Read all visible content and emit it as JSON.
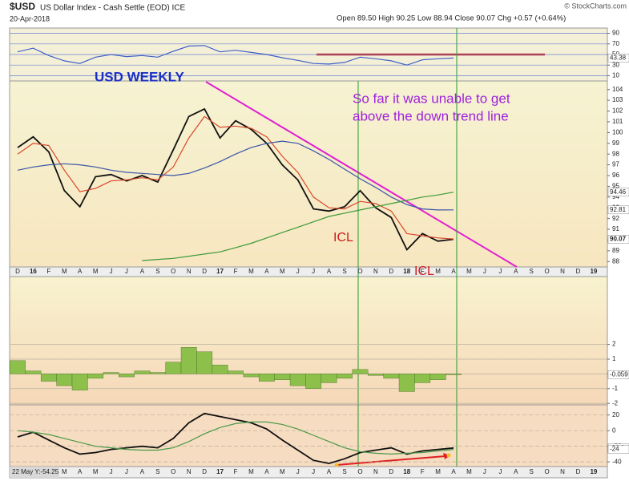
{
  "header": {
    "symbol": "$USD",
    "name": "US Dollar Index - Cash Settle (EOD) ICE",
    "date": "20-Apr-2018",
    "quote": "Open 89.50 High 90.25 Low 88.94 Close 90.07 Chg +0.57 (+0.64%)",
    "credit": "© StockCharts.com"
  },
  "footer": "22 May Y:-54.25",
  "chart_data": [
    {
      "type": "line",
      "ylim": [
        0,
        100
      ],
      "yticks": [
        10,
        30,
        50,
        70,
        90
      ],
      "grid": true,
      "series": [
        {
          "color": "#4060c8",
          "values": [
            55,
            62,
            48,
            38,
            33,
            45,
            50,
            46,
            48,
            45,
            56,
            66,
            67,
            55,
            58,
            54,
            50,
            44,
            39,
            33,
            32,
            35,
            45,
            42,
            38,
            30,
            40,
            42,
            43.38,
            null,
            null,
            null,
            null,
            null,
            null,
            null,
            null,
            null
          ]
        }
      ]
    },
    {
      "type": "line",
      "ylim": [
        87.5,
        104.8
      ],
      "yticks": [
        88,
        89,
        90,
        91,
        92,
        93,
        94,
        95,
        96,
        97,
        98,
        99,
        100,
        101,
        102,
        103,
        104
      ],
      "grid": false,
      "categories": [
        "D",
        "16",
        "F",
        "M",
        "A",
        "M",
        "J",
        "J",
        "A",
        "S",
        "O",
        "N",
        "D",
        "17",
        "F",
        "M",
        "A",
        "M",
        "J",
        "J",
        "A",
        "S",
        "O",
        "N",
        "D",
        "18",
        "F",
        "M",
        "A",
        "M",
        "J",
        "J",
        "A",
        "S",
        "O",
        "N",
        "D",
        "19"
      ],
      "annotations": [
        "USD WEEKLY",
        "So far it was unable to get",
        "above the down trend line",
        "ICL",
        "ICL"
      ],
      "series": [
        {
          "color": "#111111",
          "values": [
            98.6,
            99.6,
            98.2,
            94.6,
            93.1,
            95.9,
            96.1,
            95.5,
            96.0,
            95.4,
            98.4,
            101.5,
            102.2,
            99.5,
            101.1,
            100.3,
            99.0,
            97.0,
            95.6,
            92.9,
            92.7,
            93.1,
            94.6,
            93.0,
            92.1,
            89.1,
            90.6,
            89.9,
            90.07,
            null,
            null,
            null,
            null,
            null,
            null,
            null,
            null,
            null
          ]
        },
        {
          "color": "#d9482b",
          "values": [
            98,
            99,
            98.8,
            96.5,
            94.5,
            94.8,
            95.5,
            95.6,
            95.8,
            95.6,
            96.8,
            99.5,
            101.5,
            100.5,
            100.6,
            100.4,
            99.6,
            97.8,
            96.3,
            94,
            93,
            92.9,
            93.6,
            93.4,
            92.7,
            90.6,
            90.4,
            90.2,
            90.1,
            null,
            null,
            null,
            null,
            null,
            null,
            null,
            null,
            null
          ]
        },
        {
          "color": "#3a55a8",
          "values": [
            96.5,
            96.8,
            97,
            97.1,
            97,
            96.8,
            96.5,
            96.3,
            96.2,
            96.1,
            96,
            96.2,
            96.7,
            97.3,
            98,
            98.6,
            99,
            99.2,
            99,
            98.3,
            97.5,
            96.6,
            95.7,
            94.9,
            94,
            93.3,
            92.9,
            92.8,
            92.81,
            null,
            null,
            null,
            null,
            null,
            null,
            null,
            null,
            null
          ]
        },
        {
          "color": "#3a9a3a",
          "values": [
            null,
            null,
            null,
            null,
            null,
            null,
            null,
            null,
            88.1,
            88.2,
            88.3,
            88.5,
            88.7,
            88.9,
            89.3,
            89.7,
            90.2,
            90.7,
            91.2,
            91.7,
            92.2,
            92.5,
            92.8,
            93.1,
            93.4,
            93.7,
            94.0,
            94.2,
            94.46,
            null,
            null,
            null,
            null,
            null,
            null,
            null,
            null,
            null
          ]
        }
      ]
    },
    {
      "type": "bar",
      "ylim": [
        -2.1,
        6.6
      ],
      "yticks": [
        -2,
        -1,
        0,
        1,
        2
      ],
      "grid": true,
      "series": [
        {
          "color": "#8cc04a",
          "values": [
            0.9,
            0.2,
            -0.5,
            -0.8,
            -1.1,
            -0.3,
            0.1,
            -0.2,
            0.2,
            0.1,
            0.8,
            1.8,
            1.5,
            0.6,
            0.2,
            -0.2,
            -0.5,
            -0.4,
            -0.8,
            -1.0,
            -0.6,
            -0.3,
            0.3,
            -0.1,
            -0.3,
            -1.2,
            -0.6,
            -0.4,
            -0.059,
            null,
            null,
            null,
            null,
            null,
            null,
            null,
            null,
            null
          ]
        }
      ]
    },
    {
      "type": "line",
      "ylim": [
        -46,
        33
      ],
      "yticks": [
        -40,
        -20,
        0,
        20
      ],
      "grid": true,
      "categories": [
        "D",
        "16",
        "F",
        "M",
        "A",
        "M",
        "J",
        "J",
        "A",
        "S",
        "O",
        "N",
        "D",
        "17",
        "F",
        "M",
        "A",
        "M",
        "J",
        "J",
        "A",
        "S",
        "O",
        "N",
        "D",
        "18",
        "F",
        "M",
        "A",
        "M",
        "J",
        "J",
        "A",
        "S",
        "O",
        "N",
        "D",
        "19"
      ],
      "series": [
        {
          "color": "#111111",
          "values": [
            -8,
            -2,
            -12,
            -22,
            -30,
            -28,
            -24,
            -22,
            -20,
            -22,
            -10,
            10,
            22,
            18,
            14,
            10,
            2,
            -12,
            -25,
            -38,
            -42,
            -36,
            -28,
            -25,
            -22,
            -30,
            -26,
            -24,
            -22.2,
            null,
            null,
            null,
            null,
            null,
            null,
            null,
            null,
            null
          ]
        },
        {
          "color": "#4a9a4a",
          "values": [
            0,
            -2,
            -5,
            -10,
            -15,
            -20,
            -22,
            -24,
            -25,
            -25,
            -22,
            -14,
            -4,
            4,
            9,
            11,
            11,
            8,
            2,
            -6,
            -14,
            -22,
            -27,
            -29,
            -30,
            -29,
            -28,
            -26,
            -24,
            null,
            null,
            null,
            null,
            null,
            null,
            null,
            null,
            null
          ]
        }
      ]
    }
  ]
}
